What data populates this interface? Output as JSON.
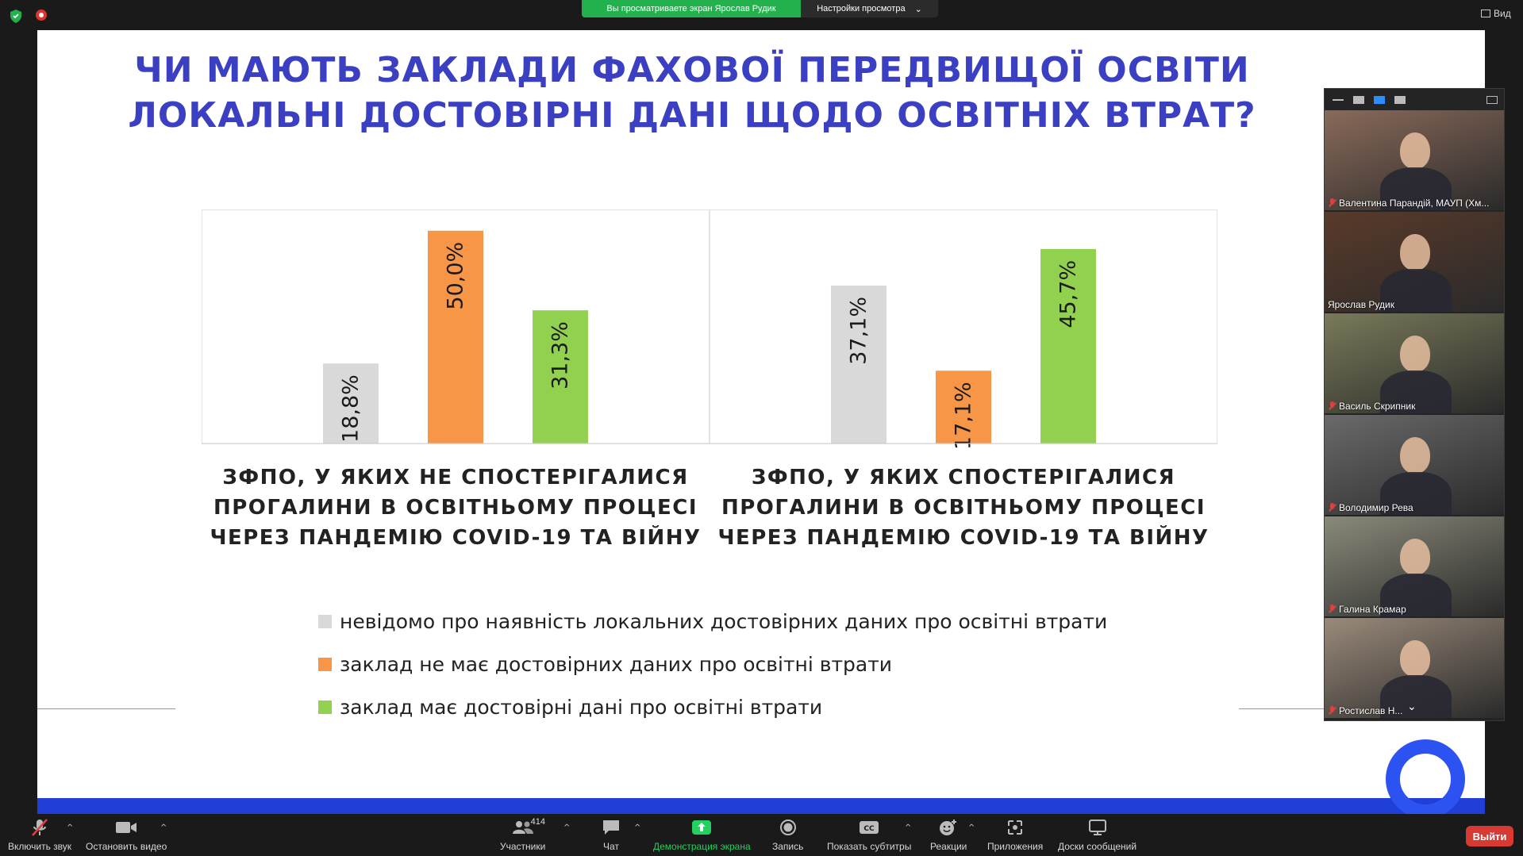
{
  "top": {
    "share_banner": "Вы просматриваете экран Ярослав Рудик",
    "view_settings": "Настройки просмотра",
    "view_label": "Вид"
  },
  "slide": {
    "title_line1": "ЧИ МАЮТЬ ЗАКЛАДИ ФАХОВОЇ ПЕРЕДВИЩОЇ ОСВІТИ",
    "title_line2": "ЛОКАЛЬНІ ДОСТОВІРНІ ДАНІ ЩОДО ОСВІТНІХ ВТРАТ?",
    "caption1": [
      "ЗФПО, У ЯКИХ НЕ СПОСТЕРІГАЛИСЯ",
      "ПРОГАЛИНИ В ОСВІТНЬОМУ ПРОЦЕСІ",
      "ЧЕРЕЗ ПАНДЕМІЮ COVID-19 ТА ВІЙНУ"
    ],
    "caption2": [
      "ЗФПО, У ЯКИХ СПОСТЕРІГАЛИСЯ",
      "ПРОГАЛИНИ В ОСВІТНЬОМУ ПРОЦЕСІ",
      "ЧЕРЕЗ ПАНДЕМІЮ COVID-19 ТА ВІЙНУ"
    ],
    "legend": [
      {
        "label": "невідомо про наявність локальних достовірних даних про освітні втрати",
        "color": "#d9d9d9"
      },
      {
        "label": "заклад не має достовірних даних про освітні втрати",
        "color": "#f79646"
      },
      {
        "label": "заклад має достовірні дані про освітні втрати",
        "color": "#92d050"
      }
    ]
  },
  "chart_data": [
    {
      "type": "bar",
      "categories": [
        "невідомо про наявність локальних достовірних даних про освітні втрати",
        "заклад не має достовірних даних про освітні втрати",
        "заклад має достовірні дані про освітні втрати"
      ],
      "values": [
        18.8,
        50.0,
        31.3
      ],
      "labels": [
        "18,8%",
        "50,0%",
        "31,3%"
      ],
      "colors": [
        "#d9d9d9",
        "#f79646",
        "#92d050"
      ],
      "title": "ЗФПО, У ЯКИХ НЕ СПОСТЕРІГАЛИСЯ ПРОГАЛИНИ В ОСВІТНЬОМУ ПРОЦЕСІ ЧЕРЕЗ ПАНДЕМІЮ COVID-19 ТА ВІЙНУ",
      "ylim": [
        0,
        55
      ]
    },
    {
      "type": "bar",
      "categories": [
        "невідомо про наявність локальних достовірних даних про освітні втрати",
        "заклад не має достовірних даних про освітні втрати",
        "заклад має достовірні дані про освітні втрати"
      ],
      "values": [
        37.1,
        17.1,
        45.7
      ],
      "labels": [
        "37,1%",
        "17,1%",
        "45,7%"
      ],
      "colors": [
        "#d9d9d9",
        "#f79646",
        "#92d050"
      ],
      "title": "ЗФПО, У ЯКИХ СПОСТЕРІГАЛИСЯ ПРОГАЛИНИ В ОСВІТНЬОМУ ПРОЦЕСІ ЧЕРЕЗ ПАНДЕМІЮ COVID-19 ТА ВІЙНУ",
      "ylim": [
        0,
        55
      ]
    }
  ],
  "participants": [
    {
      "name": "Валентина Парандій, МАУП (Хм...",
      "muted": true,
      "bg": "#8a6a5a"
    },
    {
      "name": "Ярослав Рудик",
      "muted": false,
      "bg": "#5a3a2a"
    },
    {
      "name": "Василь Скрипник",
      "muted": true,
      "bg": "#7a7a5a"
    },
    {
      "name": "Володимир Рева",
      "muted": true,
      "bg": "#6a6a6a"
    },
    {
      "name": "Галина Крамар",
      "muted": true,
      "bg": "#8a8a7a"
    },
    {
      "name": "Ростислав Н...",
      "muted": true,
      "bg": "#9a8a7a"
    }
  ],
  "toolbar": {
    "unmute": "Включить звук",
    "stop_video": "Остановить видео",
    "participants": "Участники",
    "participants_count": "414",
    "chat": "Чат",
    "share": "Демонстрация экрана",
    "record": "Запись",
    "captions": "Показать субтитры",
    "reactions": "Реакции",
    "apps": "Приложения",
    "whiteboards": "Доски сообщений",
    "leave": "Выйти"
  }
}
